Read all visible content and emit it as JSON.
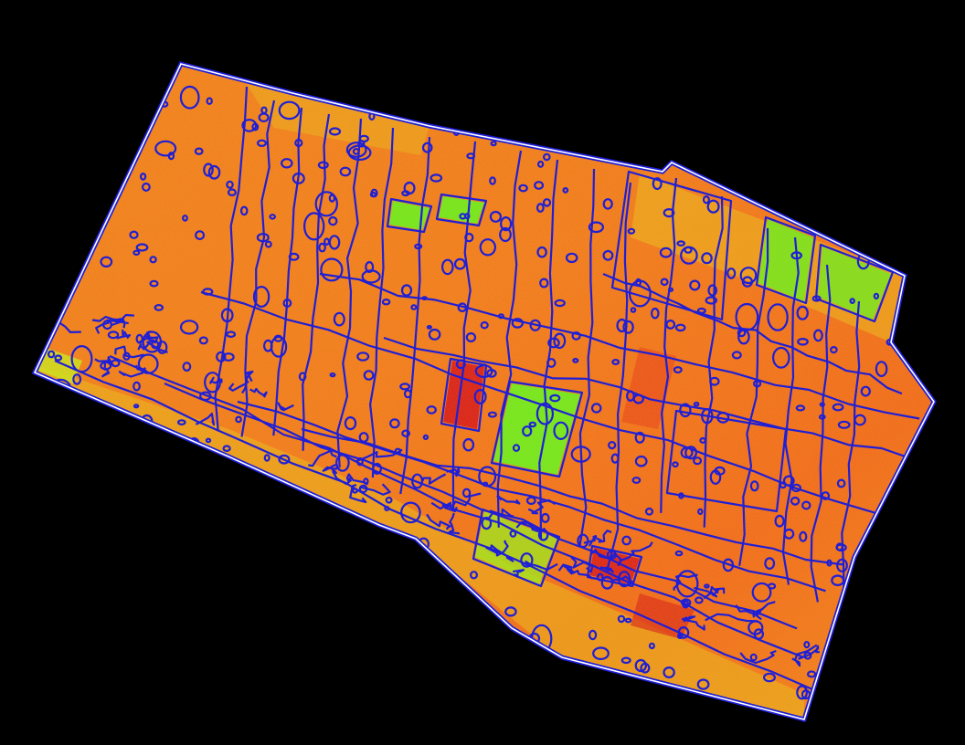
{
  "map": {
    "type": "vegetation-index-field-map",
    "background_color": "#000000",
    "boundary_outline_color": "#ffffff",
    "contour_color": "#1f1fd6",
    "palette": {
      "low_stress": "#d4101a",
      "medium_low": "#f0501a",
      "medium": "#f07a1e",
      "medium_high": "#e8b81e",
      "high": "#e6e61a",
      "very_high": "#72e61e"
    },
    "zones": [
      {
        "name": "green-zone-center",
        "class": "very_high"
      },
      {
        "name": "green-zone-northeast",
        "class": "very_high"
      },
      {
        "name": "green-zone-southeast",
        "class": "very_high"
      },
      {
        "name": "red-zone-center",
        "class": "low_stress"
      },
      {
        "name": "red-zone-south",
        "class": "low_stress"
      }
    ]
  }
}
